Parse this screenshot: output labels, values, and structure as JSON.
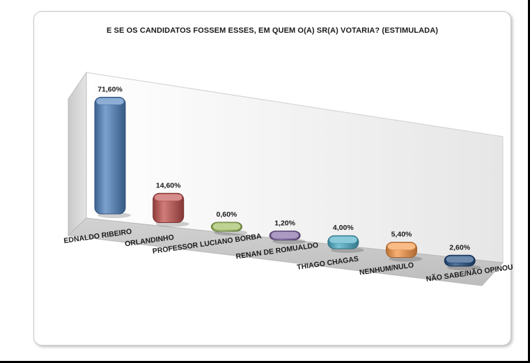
{
  "chart_data": {
    "type": "bar",
    "title": "E SE OS CANDIDATOS FOSSEM ESSES, EM QUEM O(A) SR(A) VOTARIA? (ESTIMULADA)",
    "categories": [
      "EDNALDO RIBEIRO",
      "ORLANDINHO",
      "PROFESSOR LUCIANO BORBA",
      "RENAN DE ROMUALDO",
      "THIAGO CHAGAS",
      "NENHUM/NULO",
      "NÃO SABE/NÃO OPINOU"
    ],
    "values": [
      71.6,
      14.6,
      0.6,
      1.2,
      4.0,
      5.4,
      2.6
    ],
    "value_labels": [
      "71,60%",
      "14,60%",
      "0,60%",
      "1,20%",
      "4,00%",
      "5,40%",
      "2,60%"
    ],
    "colors": [
      "#4f81bd",
      "#c0504d",
      "#9bbb59",
      "#8064a2",
      "#4bacc6",
      "#f79646",
      "#1f497d"
    ],
    "ylim": [
      0,
      80
    ],
    "grid": false,
    "legend": "none",
    "style": "3d-perspective"
  }
}
